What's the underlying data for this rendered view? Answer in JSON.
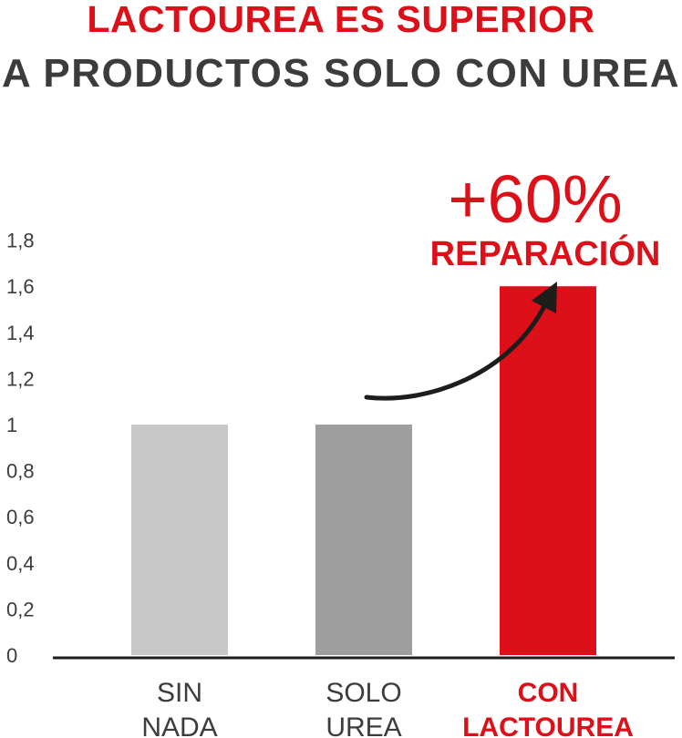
{
  "title": {
    "line1_a": "LACTOUREA ES ",
    "line1_b": "SUPERIOR",
    "line2": "A PRODUCTOS SOLO CON UREA"
  },
  "colors": {
    "red": "#dd1019",
    "dark": "#3c3c3b",
    "light_gray": "#c8c8c8",
    "mid_gray": "#9f9e9e",
    "axis": "#1d1d1b"
  },
  "chart_data": {
    "type": "bar",
    "categories": [
      [
        "SIN",
        "NADA"
      ],
      [
        "SOLO",
        "UREA"
      ],
      [
        "CON",
        "LACTOUREA"
      ]
    ],
    "values": [
      1,
      1,
      1.6
    ],
    "bar_colors": [
      "#c8c8c8",
      "#9f9e9e",
      "#dd1019"
    ],
    "highlight_index": 2,
    "ylim": [
      0,
      1.8
    ],
    "yticks": [
      0,
      0.2,
      0.4,
      0.6,
      0.8,
      1,
      1.2,
      1.4,
      1.6,
      1.8
    ],
    "ytick_labels": [
      "0",
      "0,2",
      "0,4",
      "0,6",
      "0,8",
      "1",
      "1,2",
      "1,4",
      "1,6",
      "1,8"
    ],
    "grid": false,
    "annotation": {
      "value": "+60%",
      "label": "REPARACIÓN",
      "arrow": "curved-up-right"
    }
  }
}
